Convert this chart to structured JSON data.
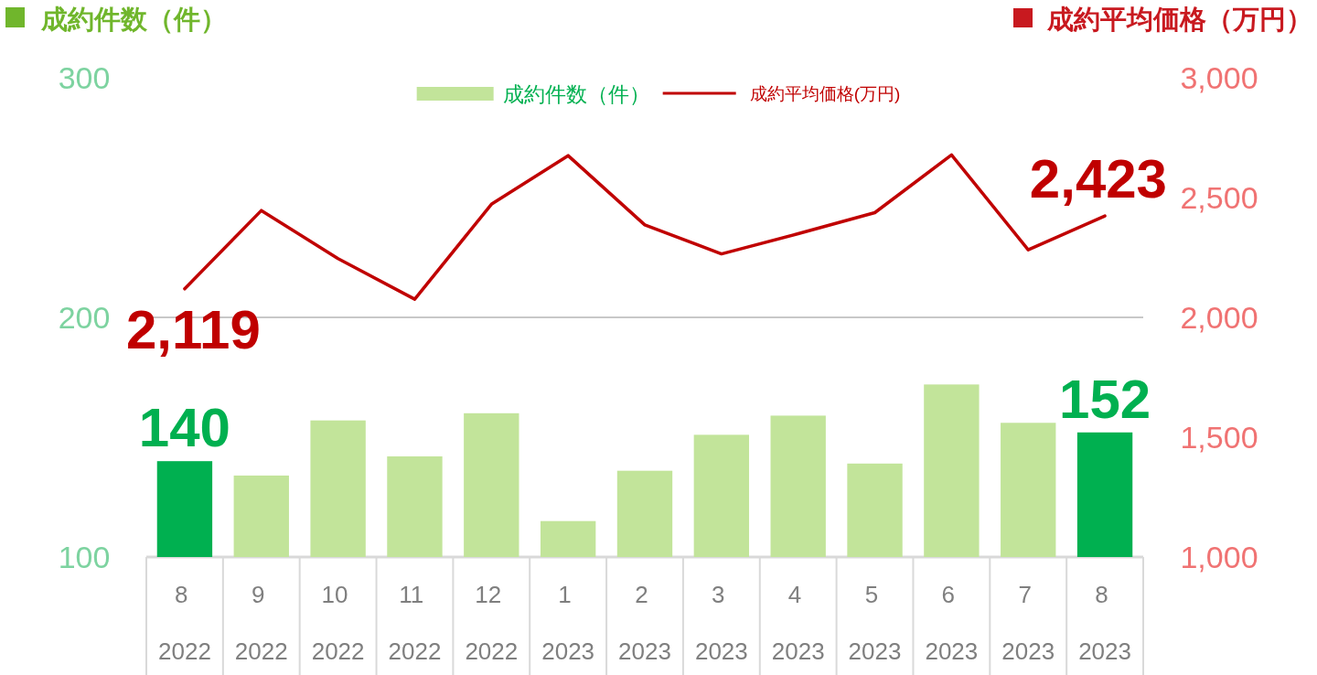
{
  "chart_data": {
    "type": "bar",
    "ylabel": "成約件数（件）",
    "y2label": "成約平均価格（万円）",
    "categories": [
      "8\n2022",
      "9\n2022",
      "10\n2022",
      "11\n2022",
      "12\n2022",
      "1\n2023",
      "2\n2023",
      "3\n2023",
      "4\n2023",
      "5\n2023",
      "6\n2023",
      "7\n2023",
      "8\n2023"
    ],
    "ylim": [
      100,
      300
    ],
    "yticks": [
      100,
      200,
      300
    ],
    "y2lim": [
      1000,
      3000
    ],
    "y2ticks": [
      {
        "value": 1000,
        "label": "1,000"
      },
      {
        "value": 1500,
        "label": "1,500"
      },
      {
        "value": 2000,
        "label": "2,000"
      },
      {
        "value": 2500,
        "label": "2,500"
      },
      {
        "value": 3000,
        "label": "3,000"
      }
    ],
    "ref_lines": [
      {
        "axis": "y",
        "value": 200,
        "color": "#c8c8c8"
      }
    ],
    "legend": "top",
    "series": [
      {
        "name": "成約件数（件）",
        "type": "bar",
        "color": "#c2e49a",
        "colors": [
          "#00b050",
          "#c2e49a",
          "#c2e49a",
          "#c2e49a",
          "#c2e49a",
          "#c2e49a",
          "#c2e49a",
          "#c2e49a",
          "#c2e49a",
          "#c2e49a",
          "#c2e49a",
          "#c2e49a",
          "#00b050"
        ],
        "values": [
          140,
          134,
          157,
          142,
          160,
          115,
          136,
          151,
          159,
          139,
          172,
          156,
          152
        ],
        "value_labels": [
          "140",
          null,
          null,
          null,
          null,
          null,
          null,
          null,
          null,
          null,
          null,
          null,
          "152"
        ]
      },
      {
        "name": "成約平均価格(万円)",
        "type": "line",
        "axis": "y2",
        "color": "#c00000",
        "values": [
          2119,
          2446,
          2245,
          2076,
          2472,
          2675,
          2386,
          2265,
          2349,
          2437,
          2678,
          2282,
          2423
        ],
        "value_labels": [
          "2,119",
          null,
          null,
          null,
          null,
          null,
          null,
          null,
          null,
          null,
          null,
          null,
          "2,423"
        ]
      }
    ]
  }
}
